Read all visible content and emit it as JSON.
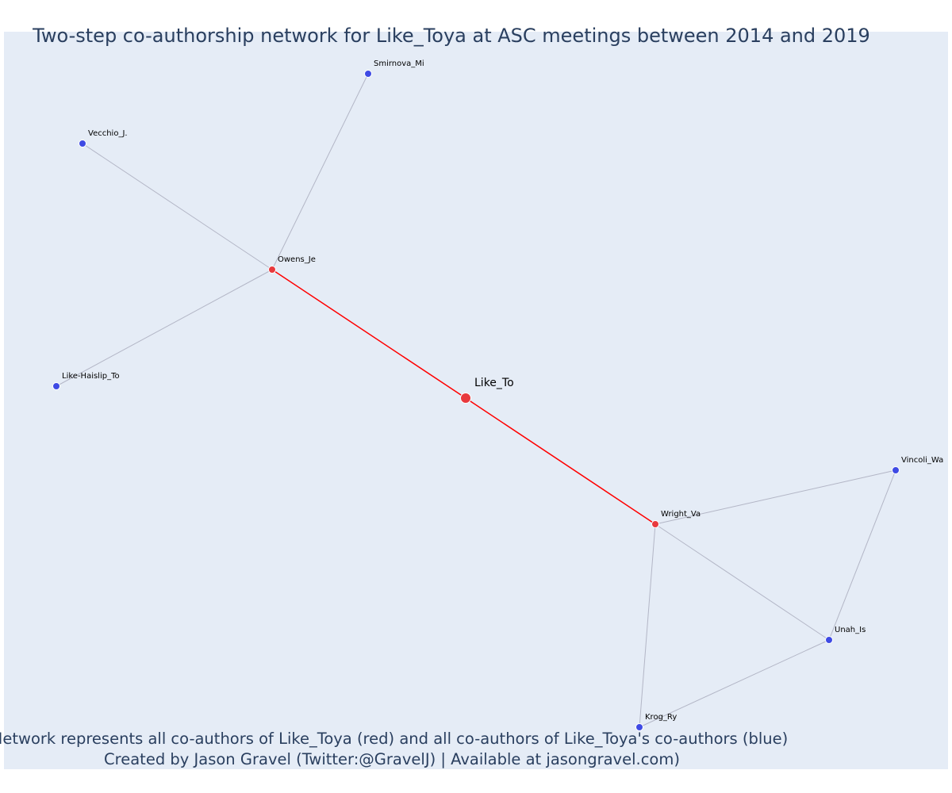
{
  "title": "Two-step co-authorship network for Like_Toya at ASC meetings between 2014 and 2019",
  "caption": {
    "line1": "Network represents all co-authors of Like_Toya (red) and all co-authors of Like_Toya's co-authors (blue)",
    "line2": "Created by Jason Gravel (Twitter:@GravelJ) | Available at jasongravel.com)"
  },
  "colors": {
    "background": "#e5ecf6",
    "ego_node": "#e8393d",
    "first_step_node": "#e8393d",
    "second_step_node": "#3e4ae4",
    "ego_edge": "#ff0000",
    "other_edge": "#b3b6c6",
    "text": "#2a3f5f"
  },
  "nodes": [
    {
      "id": "Like_To",
      "label": "Like_To",
      "role": "ego"
    },
    {
      "id": "Owens_Je",
      "label": "Owens_Je",
      "role": "coauthor"
    },
    {
      "id": "Wright_Va",
      "label": "Wright_Va",
      "role": "coauthor"
    },
    {
      "id": "Smirnova_Mi",
      "label": "Smirnova_Mi",
      "role": "second-step"
    },
    {
      "id": "Vecchio_J.",
      "label": "Vecchio_J.",
      "role": "second-step"
    },
    {
      "id": "Like-Haislip_To",
      "label": "Like-Haislip_To",
      "role": "second-step"
    },
    {
      "id": "Vincoli_Wa",
      "label": "Vincoli_Wa",
      "role": "second-step"
    },
    {
      "id": "Unah_Is",
      "label": "Unah_Is",
      "role": "second-step"
    },
    {
      "id": "Krog_Ry",
      "label": "Krog_Ry",
      "role": "second-step"
    }
  ],
  "edges": [
    {
      "source": "Like_To",
      "target": "Owens_Je",
      "type": "ego"
    },
    {
      "source": "Like_To",
      "target": "Wright_Va",
      "type": "ego"
    },
    {
      "source": "Owens_Je",
      "target": "Smirnova_Mi",
      "type": "other"
    },
    {
      "source": "Owens_Je",
      "target": "Vecchio_J.",
      "type": "other"
    },
    {
      "source": "Owens_Je",
      "target": "Like-Haislip_To",
      "type": "other"
    },
    {
      "source": "Wright_Va",
      "target": "Vincoli_Wa",
      "type": "other"
    },
    {
      "source": "Wright_Va",
      "target": "Unah_Is",
      "type": "other"
    },
    {
      "source": "Wright_Va",
      "target": "Krog_Ry",
      "type": "other"
    },
    {
      "source": "Vincoli_Wa",
      "target": "Unah_Is",
      "type": "other"
    },
    {
      "source": "Unah_Is",
      "target": "Krog_Ry",
      "type": "other"
    }
  ]
}
